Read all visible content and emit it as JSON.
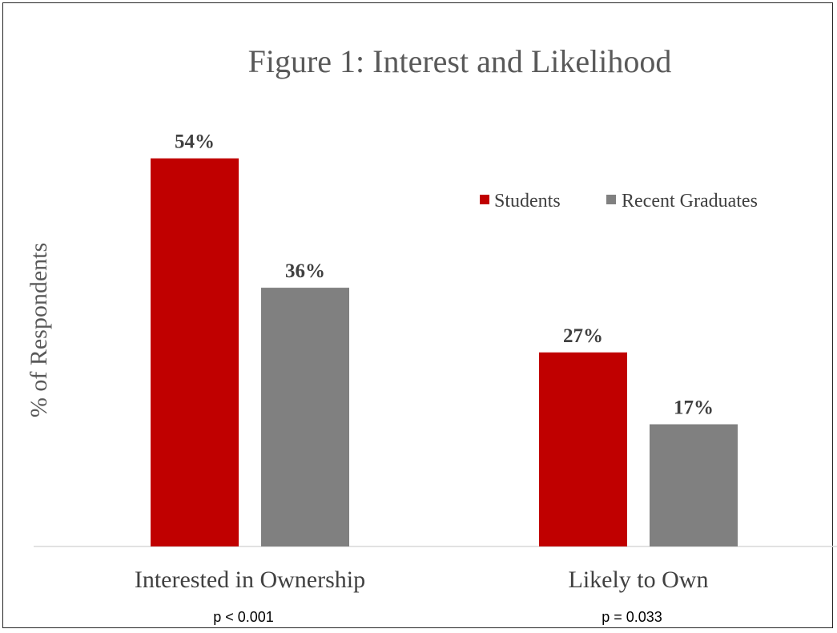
{
  "chart_data": {
    "type": "bar",
    "title": "Figure 1: Interest and Likelihood",
    "xlabel": "",
    "ylabel": "% of Respondents",
    "categories": [
      "Interested in Ownership",
      "Likely to Own"
    ],
    "notes": [
      "p < 0.001",
      "p = 0.033"
    ],
    "series": [
      {
        "name": "Students",
        "values": [
          54,
          27
        ],
        "labels": [
          "54%",
          "27%"
        ],
        "color": "#c00000"
      },
      {
        "name": "Recent Graduates",
        "values": [
          36,
          17
        ],
        "labels": [
          "36%",
          "17%"
        ],
        "color": "#808080"
      }
    ],
    "ylim": [
      0,
      60
    ],
    "grid": false,
    "legend_position": "top-right",
    "axis_color": "#d9d9d9"
  }
}
